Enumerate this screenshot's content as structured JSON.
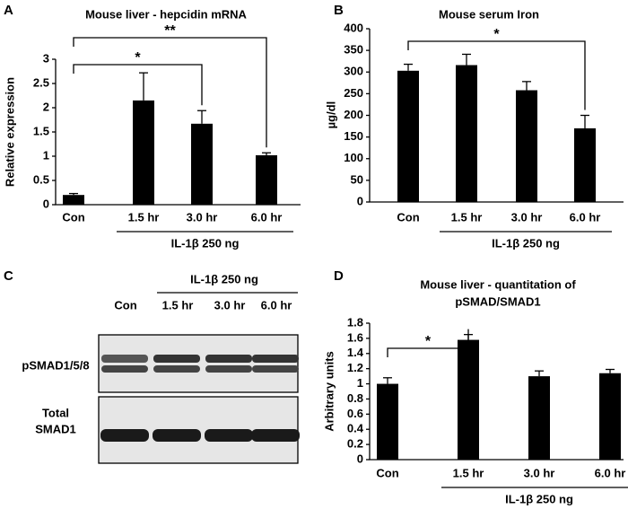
{
  "chart_data": [
    {
      "type": "bar",
      "panel": "A",
      "title": [
        "Mouse liver - hepcidin mRNA"
      ],
      "ylabel": "Relative expression",
      "categories": [
        "Con",
        "1.5 hr",
        "3.0 hr",
        "6.0 hr"
      ],
      "values": [
        0.2,
        2.15,
        1.67,
        1.02
      ],
      "errors": [
        0.03,
        0.57,
        0.27,
        0.05
      ],
      "color": "#000000",
      "ylim": [
        0,
        3
      ],
      "yticks": [
        0,
        0.5,
        1,
        1.5,
        2,
        2.5,
        3
      ],
      "group": {
        "label": "IL-1β 250 ng",
        "categories": [
          "1.5 hr",
          "3.0 hr",
          "6.0 hr"
        ]
      },
      "significance": [
        {
          "text": "*",
          "between": [
            "Con",
            "3.0 hr"
          ]
        },
        {
          "text": "**",
          "between": [
            "Con",
            "6.0 hr"
          ]
        }
      ]
    },
    {
      "type": "bar",
      "panel": "B",
      "title": [
        "Mouse serum Iron"
      ],
      "ylabel": "µg/dl",
      "categories": [
        "Con",
        "1.5 hr",
        "3.0 hr",
        "6.0 hr"
      ],
      "values": [
        303,
        316,
        258,
        170
      ],
      "errors": [
        15,
        25,
        20,
        30
      ],
      "color": "#000000",
      "ylim": [
        0,
        400
      ],
      "yticks": [
        0,
        50,
        100,
        150,
        200,
        250,
        300,
        350,
        400
      ],
      "group": {
        "label": "IL-1β 250 ng",
        "categories": [
          "1.5 hr",
          "3.0 hr",
          "6.0 hr"
        ]
      },
      "significance": [
        {
          "text": "*",
          "between": [
            "Con",
            "6.0 hr"
          ]
        }
      ]
    },
    {
      "type": "bar",
      "panel": "D",
      "title": [
        "Mouse liver - quantitation of",
        "pSMAD/SMAD1"
      ],
      "ylabel": "Arbitrary units",
      "categories": [
        "Con",
        "1.5 hr",
        "3.0 hr",
        "6.0 hr"
      ],
      "values": [
        1.0,
        1.58,
        1.1,
        1.14
      ],
      "errors": [
        0.08,
        0.07,
        0.07,
        0.05
      ],
      "color": "#000000",
      "ylim": [
        0,
        1.8
      ],
      "yticks": [
        0,
        0.2,
        0.4,
        0.6,
        0.8,
        1,
        1.2,
        1.4,
        1.6,
        1.8
      ],
      "group": {
        "label": "IL-1β 250 ng",
        "categories": [
          "1.5 hr",
          "3.0 hr",
          "6.0 hr"
        ]
      },
      "significance": [
        {
          "text": "*",
          "between": [
            "Con",
            "1.5 hr"
          ]
        }
      ]
    }
  ],
  "blot": {
    "panel": "C",
    "group_label": "IL-1β 250 ng",
    "lanes": [
      "Con",
      "1.5 hr",
      "3.0 hr",
      "6.0 hr"
    ],
    "rows": [
      [
        "pSMAD1/5/8"
      ],
      [
        "Total",
        "SMAD1"
      ]
    ]
  }
}
